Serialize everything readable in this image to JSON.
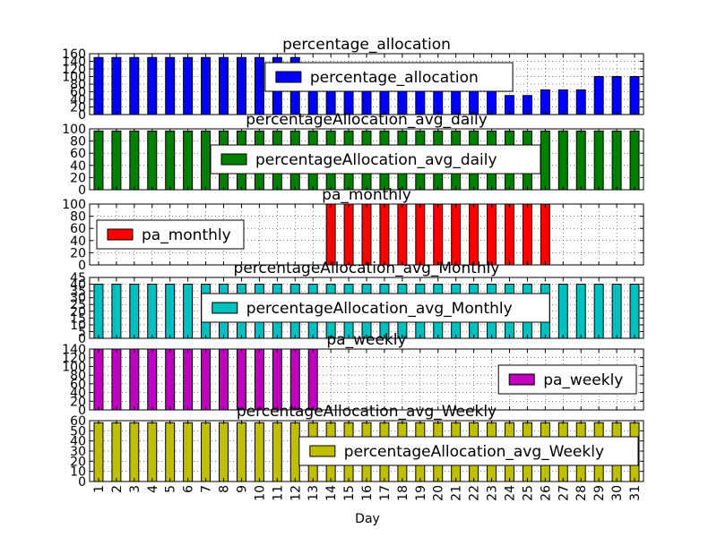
{
  "figure": {
    "xlabel": "Day"
  },
  "chart_data": {
    "type": "bar",
    "categories": [
      "1",
      "2",
      "3",
      "4",
      "5",
      "6",
      "7",
      "8",
      "9",
      "10",
      "11",
      "12",
      "13",
      "14",
      "15",
      "16",
      "17",
      "18",
      "19",
      "20",
      "21",
      "22",
      "23",
      "24",
      "25",
      "26",
      "27",
      "28",
      "29",
      "30",
      "31"
    ],
    "xlabel": "Day",
    "grid": true,
    "panels": [
      {
        "title": "percentage_allocation",
        "series": [
          {
            "name": "percentage_allocation",
            "color": "#0000ff",
            "values": [
              150,
              150,
              150,
              150,
              150,
              150,
              150,
              150,
              150,
              150,
              150,
              150,
              100,
              100,
              100,
              100,
              100,
              100,
              100,
              100,
              100,
              100,
              100,
              50,
              50,
              65,
              65,
              65,
              100,
              100,
              100
            ]
          }
        ],
        "ylim": [
          0,
          160
        ],
        "yticks": [
          0,
          20,
          40,
          60,
          80,
          100,
          120,
          140,
          160
        ],
        "legend": "top-center"
      },
      {
        "title": "percentageAllocation_avg_daily",
        "series": [
          {
            "name": "percentageAllocation_avg_daily",
            "color": "#007f00",
            "values": [
              96.5,
              96.5,
              96.5,
              96.5,
              96.5,
              96.5,
              96.5,
              96.5,
              96.5,
              96.5,
              96.5,
              96.5,
              96.5,
              96.5,
              96.5,
              96.5,
              96.5,
              96.5,
              96.5,
              96.5,
              96.5,
              96.5,
              96.5,
              96.5,
              96.5,
              96.5,
              96.5,
              96.5,
              96.5,
              96.5,
              96.5
            ]
          }
        ],
        "ylim": [
          0,
          100
        ],
        "yticks": [
          0,
          20,
          40,
          60,
          80,
          100
        ],
        "legend": "center"
      },
      {
        "title": "pa_monthly",
        "series": [
          {
            "name": "pa_monthly",
            "color": "#ff0000",
            "values": [
              0,
              0,
              0,
              0,
              0,
              0,
              0,
              0,
              0,
              0,
              0,
              0,
              0,
              100,
              100,
              100,
              100,
              100,
              100,
              100,
              100,
              100,
              100,
              100,
              100,
              100,
              0,
              0,
              0,
              0,
              0
            ]
          }
        ],
        "ylim": [
          0,
          100
        ],
        "yticks": [
          0,
          20,
          40,
          60,
          80,
          100
        ],
        "legend": "left"
      },
      {
        "title": "percentageAllocation_avg_Monthly",
        "series": [
          {
            "name": "percentageAllocation_avg_Monthly",
            "color": "#00bfbf",
            "values": [
              40,
              40,
              40,
              40,
              40,
              40,
              40,
              40,
              40,
              40,
              40,
              40,
              40,
              40,
              40,
              40,
              40,
              40,
              40,
              40,
              40,
              40,
              40,
              40,
              40,
              40,
              40,
              40,
              40,
              40,
              40
            ]
          }
        ],
        "ylim": [
          0,
          45
        ],
        "yticks": [
          0,
          5,
          10,
          15,
          20,
          25,
          30,
          35,
          40,
          45
        ],
        "legend": "center"
      },
      {
        "title": "pa_weekly",
        "series": [
          {
            "name": "pa_weekly",
            "color": "#bf00bf",
            "values": [
              140,
              140,
              140,
              140,
              140,
              140,
              140,
              140,
              140,
              140,
              140,
              140,
              140,
              0,
              0,
              0,
              0,
              0,
              0,
              0,
              0,
              0,
              0,
              0,
              0,
              0,
              0,
              0,
              0,
              0,
              0
            ]
          }
        ],
        "ylim": [
          0,
          140
        ],
        "yticks": [
          0,
          20,
          40,
          60,
          80,
          100,
          120,
          140
        ],
        "legend": "right"
      },
      {
        "title": "percentageAllocation_avg_Weekly",
        "series": [
          {
            "name": "percentageAllocation_avg_Weekly",
            "color": "#bfbf00",
            "values": [
              58,
              58,
              58,
              58,
              58,
              58,
              58,
              58,
              58,
              58,
              58,
              58,
              58,
              58,
              58,
              58,
              58,
              58,
              58,
              58,
              58,
              58,
              58,
              58,
              58,
              58,
              58,
              58,
              58,
              58,
              58
            ]
          }
        ],
        "ylim": [
          0,
          60
        ],
        "yticks": [
          0,
          10,
          20,
          30,
          40,
          50,
          60
        ],
        "legend": "center-right"
      }
    ]
  }
}
